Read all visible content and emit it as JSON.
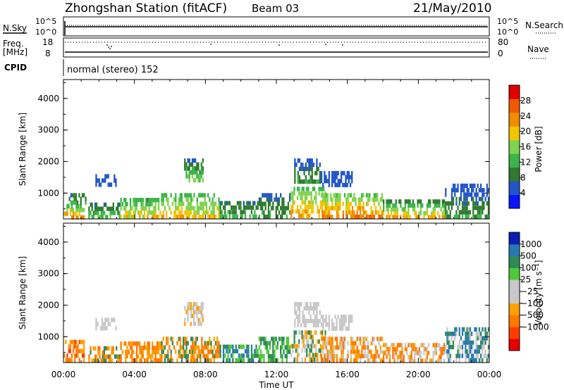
{
  "header": {
    "title": "Zhongshan Station (fitACF)",
    "beam": "Beam 03",
    "date": "21/May/2010"
  },
  "status": {
    "nsky_label": "N.Sky",
    "nsearch_label": "N.Search",
    "nsky_ticks": [
      "10^5",
      "10^0"
    ],
    "nsearch_ticks": [
      "10^5",
      "10^0"
    ],
    "freq_label": "Freq.",
    "freq_unit": "[MHz]",
    "freq_ticks": [
      "18",
      "8"
    ],
    "nave_label": "Nave",
    "nave_ticks": [
      "80",
      "0"
    ],
    "cpid_label": "CPID",
    "cpid_text": "normal (stereo) 152"
  },
  "colors": {
    "power": [
      "#0a14ff",
      "#2255c8",
      "#2f7a2f",
      "#3cb44b",
      "#7fd34e",
      "#f2c500",
      "#f08c00",
      "#f05a00",
      "#e00000"
    ],
    "velocity": [
      "#e60000",
      "#ff3c00",
      "#ff7800",
      "#ffa000",
      "#c8c8c8",
      "#c8c8c8",
      "#50c83c",
      "#2e8b57",
      "#2878b4",
      "#0a1eb4"
    ]
  },
  "chart_data": [
    {
      "type": "heatmap",
      "panel": "power",
      "xlabel": "",
      "ylabel": "Slant Range [km]",
      "xlim": [
        0,
        24
      ],
      "ylim": [
        180,
        4600
      ],
      "x_tick_labels": [
        "00:00",
        "04:00",
        "08:00",
        "12:00",
        "16:00",
        "20:00",
        "00:00"
      ],
      "y_ticks": [
        1000,
        2000,
        3000,
        4000
      ],
      "colorbar": {
        "label": "Power [dB]",
        "ticks": [
          4,
          8,
          12,
          16,
          20,
          24,
          28
        ],
        "range": [
          0,
          32
        ]
      },
      "regions": [
        {
          "t0": 0.0,
          "t1": 1.2,
          "r0": 180,
          "r1": 650,
          "v0": 12,
          "v1": 30
        },
        {
          "t0": 0.3,
          "t1": 1.3,
          "r0": 650,
          "r1": 1000,
          "v0": 6,
          "v1": 14
        },
        {
          "t0": 1.4,
          "t1": 3.2,
          "r0": 180,
          "r1": 700,
          "v0": 6,
          "v1": 18
        },
        {
          "t0": 1.8,
          "t1": 3.0,
          "r0": 1200,
          "r1": 1600,
          "v0": 4,
          "v1": 8
        },
        {
          "t0": 3.2,
          "t1": 5.5,
          "r0": 180,
          "r1": 850,
          "v0": 10,
          "v1": 26
        },
        {
          "t0": 5.5,
          "t1": 8.8,
          "r0": 180,
          "r1": 1000,
          "v0": 12,
          "v1": 26
        },
        {
          "t0": 6.8,
          "t1": 7.9,
          "r0": 1350,
          "r1": 2100,
          "v0": 6,
          "v1": 20
        },
        {
          "t0": 8.8,
          "t1": 11.0,
          "r0": 180,
          "r1": 750,
          "v0": 6,
          "v1": 16
        },
        {
          "t0": 11.0,
          "t1": 12.8,
          "r0": 180,
          "r1": 1000,
          "v0": 6,
          "v1": 14
        },
        {
          "t0": 12.8,
          "t1": 14.8,
          "r0": 200,
          "r1": 1200,
          "v0": 14,
          "v1": 28
        },
        {
          "t0": 13.0,
          "t1": 14.5,
          "r0": 1300,
          "r1": 2100,
          "v0": 4,
          "v1": 14
        },
        {
          "t0": 14.5,
          "t1": 16.3,
          "r0": 1200,
          "r1": 1700,
          "v0": 4,
          "v1": 8
        },
        {
          "t0": 14.5,
          "t1": 18.0,
          "r0": 180,
          "r1": 1000,
          "v0": 14,
          "v1": 30
        },
        {
          "t0": 18.0,
          "t1": 21.5,
          "r0": 180,
          "r1": 800,
          "v0": 8,
          "v1": 28
        },
        {
          "t0": 21.5,
          "t1": 24.0,
          "r0": 180,
          "r1": 1300,
          "v0": 4,
          "v1": 14
        }
      ]
    },
    {
      "type": "heatmap",
      "panel": "velocity",
      "xlabel": "Time UT",
      "ylabel": "Slant Range [km]",
      "xlim": [
        0,
        24
      ],
      "ylim": [
        180,
        4600
      ],
      "x_tick_labels": [
        "00:00",
        "04:00",
        "08:00",
        "12:00",
        "16:00",
        "20:00",
        "00:00"
      ],
      "y_ticks": [
        1000,
        2000,
        3000,
        4000
      ],
      "colorbar": {
        "label": "Velocity [m s⁻¹]",
        "ticks": [
          "1000",
          "500",
          "100",
          "25",
          "−25",
          "−100",
          "−500",
          "−1000"
        ]
      },
      "regions": [
        {
          "t0": 0.0,
          "t1": 1.2,
          "r0": 180,
          "r1": 900,
          "c": [
            1,
            2,
            3
          ]
        },
        {
          "t0": 1.4,
          "t1": 3.2,
          "r0": 180,
          "r1": 700,
          "c": [
            2,
            3,
            7
          ]
        },
        {
          "t0": 1.8,
          "t1": 3.0,
          "r0": 1200,
          "r1": 1600,
          "c": [
            4,
            5
          ]
        },
        {
          "t0": 3.2,
          "t1": 5.5,
          "r0": 180,
          "r1": 850,
          "c": [
            2,
            3
          ]
        },
        {
          "t0": 5.5,
          "t1": 8.8,
          "r0": 180,
          "r1": 1000,
          "c": [
            2,
            3,
            7
          ]
        },
        {
          "t0": 6.8,
          "t1": 7.9,
          "r0": 1350,
          "r1": 2100,
          "c": [
            4,
            5,
            3
          ]
        },
        {
          "t0": 8.8,
          "t1": 11.0,
          "r0": 180,
          "r1": 750,
          "c": [
            7,
            6,
            8
          ]
        },
        {
          "t0": 11.0,
          "t1": 12.8,
          "r0": 180,
          "r1": 1000,
          "c": [
            7,
            6
          ]
        },
        {
          "t0": 12.8,
          "t1": 14.8,
          "r0": 200,
          "r1": 1200,
          "c": [
            3,
            4,
            7
          ]
        },
        {
          "t0": 13.0,
          "t1": 14.5,
          "r0": 1300,
          "r1": 2100,
          "c": [
            4,
            5
          ]
        },
        {
          "t0": 14.5,
          "t1": 16.3,
          "r0": 1200,
          "r1": 1700,
          "c": [
            4,
            5
          ]
        },
        {
          "t0": 14.5,
          "t1": 18.0,
          "r0": 180,
          "r1": 1000,
          "c": [
            3,
            4,
            2
          ]
        },
        {
          "t0": 18.0,
          "t1": 21.5,
          "r0": 180,
          "r1": 800,
          "c": [
            3,
            4,
            2
          ]
        },
        {
          "t0": 21.5,
          "t1": 24.0,
          "r0": 180,
          "r1": 1300,
          "c": [
            7,
            8,
            4
          ]
        }
      ]
    }
  ]
}
